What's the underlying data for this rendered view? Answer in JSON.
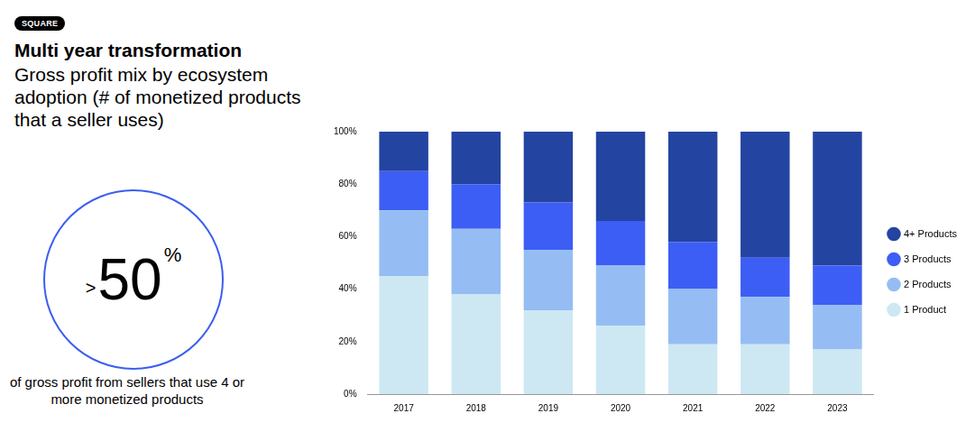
{
  "header": {
    "badge": "SQUARE",
    "title": "Multi year transformation",
    "subtitle": "Gross profit mix by ecosystem adoption (# of monetized products that a seller uses)"
  },
  "highlight": {
    "prefix": ">",
    "value": 50,
    "unit": "%",
    "text": "of gross profit from sellers that use 4 or more monetized products"
  },
  "chart_data": {
    "type": "bar",
    "stacked": true,
    "grid": false,
    "legend": "right",
    "categories": [
      "2017",
      "2018",
      "2019",
      "2020",
      "2021",
      "2022",
      "2023"
    ],
    "series": [
      {
        "name": "1 Product",
        "color": "#cde8f3",
        "values": [
          45,
          38,
          32,
          26,
          19,
          19,
          17
        ]
      },
      {
        "name": "2 Products",
        "color": "#95bdf4",
        "values": [
          25,
          25,
          23,
          23,
          21,
          18,
          17
        ]
      },
      {
        "name": "3 Products",
        "color": "#3c5ef4",
        "values": [
          15,
          17,
          18,
          17,
          18,
          15,
          15
        ]
      },
      {
        "name": "4+ Products",
        "color": "#2344a1",
        "values": [
          15,
          20,
          27,
          34,
          42,
          48,
          51
        ]
      }
    ],
    "ylim": [
      0,
      100
    ],
    "yticks": [
      {
        "value": 0,
        "label": "0%"
      },
      {
        "value": 20,
        "label": "20%"
      },
      {
        "value": 40,
        "label": "40%"
      },
      {
        "value": 60,
        "label": "60%"
      },
      {
        "value": 80,
        "label": "80%"
      },
      {
        "value": 100,
        "label": "100%"
      }
    ]
  }
}
